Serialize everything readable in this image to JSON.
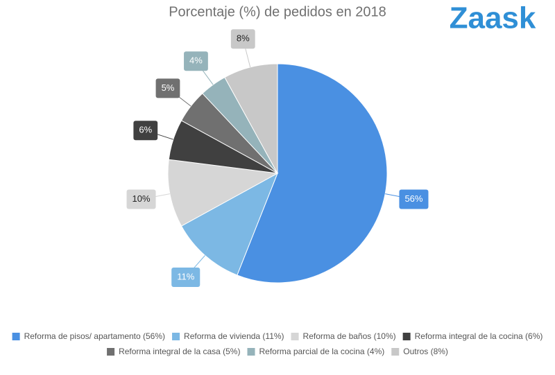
{
  "logo": "Zaask",
  "chart_data": {
    "type": "pie",
    "title": "Porcentaje (%) de pedidos en 2018",
    "categories": [
      "Reforma de pisos/ apartamento (56%)",
      "Reforma de vivienda (11%)",
      "Reforma de baños (10%)",
      "Reforma integral de la cocina (6%)",
      "Reforma integral de la casa (5%)",
      "Reforma parcial de la cocina (4%)",
      "Outros (8%)"
    ],
    "values": [
      56,
      11,
      10,
      6,
      5,
      4,
      8
    ],
    "value_labels": [
      "56%",
      "11%",
      "10%",
      "6%",
      "5%",
      "4%",
      "8%"
    ],
    "colors": [
      "#4a90e2",
      "#7cb8e4",
      "#d6d6d6",
      "#404040",
      "#707070",
      "#95b3ba",
      "#c8c8c8"
    ],
    "legend": "bottom"
  }
}
